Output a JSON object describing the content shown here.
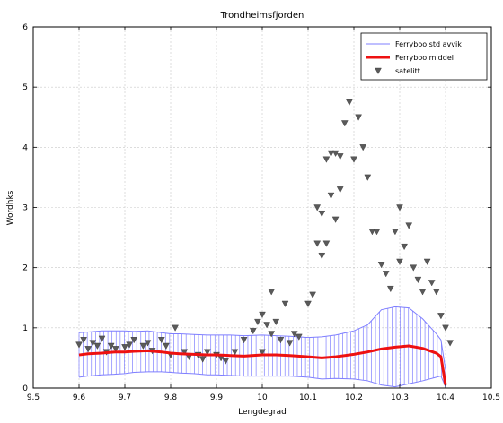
{
  "chart_data": {
    "type": "line",
    "title": "Trondheimsfjorden",
    "xlabel": "Lengdegrad",
    "ylabel": "Wordhks",
    "xlim": [
      9.5,
      10.5
    ],
    "ylim": [
      0,
      6
    ],
    "x_ticks": [
      "9.5",
      "9.6",
      "9.7",
      "9.8",
      "9.9",
      "10",
      "10.1",
      "10.2",
      "10.3",
      "10.4",
      "10.5"
    ],
    "y_ticks": [
      "0",
      "1",
      "2",
      "3",
      "4",
      "5",
      "6"
    ],
    "grid": true,
    "legend_position": "top-right",
    "legend": [
      {
        "label": "Ferryboo std avvik",
        "style": "thin-line",
        "color": "#7f7fff"
      },
      {
        "label": "Ferryboo middel",
        "style": "thick-line",
        "color": "#ee1111"
      },
      {
        "label": "satelitt",
        "style": "triangle-marker",
        "color": "#5a5a5a"
      }
    ],
    "series": [
      {
        "name": "Ferryboo middel",
        "color": "#ee1111",
        "x": [
          9.6,
          9.62,
          9.65,
          9.68,
          9.7,
          9.72,
          9.75,
          9.78,
          9.8,
          9.82,
          9.85,
          9.88,
          9.9,
          9.93,
          9.96,
          10.0,
          10.03,
          10.06,
          10.1,
          10.13,
          10.16,
          10.2,
          10.23,
          10.26,
          10.29,
          10.32,
          10.35,
          10.38,
          10.39,
          10.4
        ],
        "y": [
          0.55,
          0.57,
          0.58,
          0.6,
          0.6,
          0.61,
          0.62,
          0.6,
          0.58,
          0.57,
          0.56,
          0.55,
          0.55,
          0.54,
          0.53,
          0.55,
          0.55,
          0.54,
          0.52,
          0.5,
          0.52,
          0.56,
          0.6,
          0.65,
          0.68,
          0.7,
          0.66,
          0.58,
          0.52,
          0.05
        ]
      },
      {
        "name": "Ferryboo std avvik",
        "color": "#7f7fff",
        "x": [
          9.6,
          9.62,
          9.65,
          9.68,
          9.7,
          9.72,
          9.75,
          9.78,
          9.8,
          9.82,
          9.85,
          9.88,
          9.9,
          9.93,
          9.96,
          10.0,
          10.03,
          10.06,
          10.1,
          10.13,
          10.16,
          10.2,
          10.23,
          10.26,
          10.29,
          10.32,
          10.35,
          10.38,
          10.39,
          10.4
        ],
        "upper": [
          0.92,
          0.93,
          0.95,
          0.95,
          0.95,
          0.94,
          0.95,
          0.92,
          0.9,
          0.9,
          0.89,
          0.88,
          0.88,
          0.88,
          0.87,
          0.88,
          0.87,
          0.86,
          0.84,
          0.85,
          0.88,
          0.95,
          1.05,
          1.3,
          1.35,
          1.33,
          1.15,
          0.9,
          0.8,
          0.3
        ],
        "lower": [
          0.18,
          0.2,
          0.22,
          0.23,
          0.24,
          0.26,
          0.27,
          0.27,
          0.26,
          0.25,
          0.24,
          0.22,
          0.22,
          0.21,
          0.2,
          0.2,
          0.2,
          0.2,
          0.18,
          0.15,
          0.16,
          0.15,
          0.12,
          0.05,
          0.02,
          0.07,
          0.12,
          0.18,
          0.2,
          0.02
        ]
      },
      {
        "name": "satelitt",
        "type": "scatter",
        "color": "#5a5a5a",
        "x": [
          9.6,
          9.61,
          9.62,
          9.63,
          9.64,
          9.65,
          9.66,
          9.67,
          9.68,
          9.7,
          9.71,
          9.72,
          9.74,
          9.75,
          9.76,
          9.78,
          9.79,
          9.8,
          9.81,
          9.83,
          9.84,
          9.86,
          9.87,
          9.88,
          9.9,
          9.91,
          9.92,
          9.94,
          9.96,
          9.98,
          9.99,
          10.0,
          10.0,
          10.01,
          10.02,
          10.02,
          10.03,
          10.04,
          10.05,
          10.06,
          10.07,
          10.08,
          10.1,
          10.11,
          10.12,
          10.12,
          10.13,
          10.13,
          10.14,
          10.14,
          10.15,
          10.15,
          10.16,
          10.16,
          10.17,
          10.17,
          10.18,
          10.19,
          10.2,
          10.21,
          10.22,
          10.23,
          10.24,
          10.25,
          10.26,
          10.27,
          10.28,
          10.29,
          10.3,
          10.3,
          10.31,
          10.32,
          10.33,
          10.34,
          10.35,
          10.36,
          10.37,
          10.38,
          10.39,
          10.4,
          10.41
        ],
        "y": [
          0.72,
          0.8,
          0.65,
          0.75,
          0.7,
          0.82,
          0.6,
          0.7,
          0.65,
          0.68,
          0.72,
          0.8,
          0.7,
          0.75,
          0.62,
          0.8,
          0.7,
          0.55,
          1.0,
          0.6,
          0.52,
          0.55,
          0.48,
          0.6,
          0.55,
          0.5,
          0.45,
          0.6,
          0.8,
          0.95,
          1.1,
          1.22,
          0.6,
          1.05,
          1.6,
          0.9,
          1.1,
          0.8,
          1.4,
          0.75,
          0.9,
          0.85,
          1.4,
          1.55,
          2.4,
          3.0,
          2.9,
          2.2,
          3.8,
          2.4,
          3.2,
          3.9,
          3.9,
          2.8,
          3.85,
          3.3,
          4.4,
          4.75,
          3.8,
          4.5,
          4.0,
          3.5,
          2.6,
          2.6,
          2.05,
          1.9,
          1.65,
          2.6,
          2.1,
          3.0,
          2.35,
          2.7,
          2.0,
          1.8,
          1.6,
          2.1,
          1.75,
          1.6,
          1.2,
          1.0,
          0.75
        ]
      }
    ]
  }
}
